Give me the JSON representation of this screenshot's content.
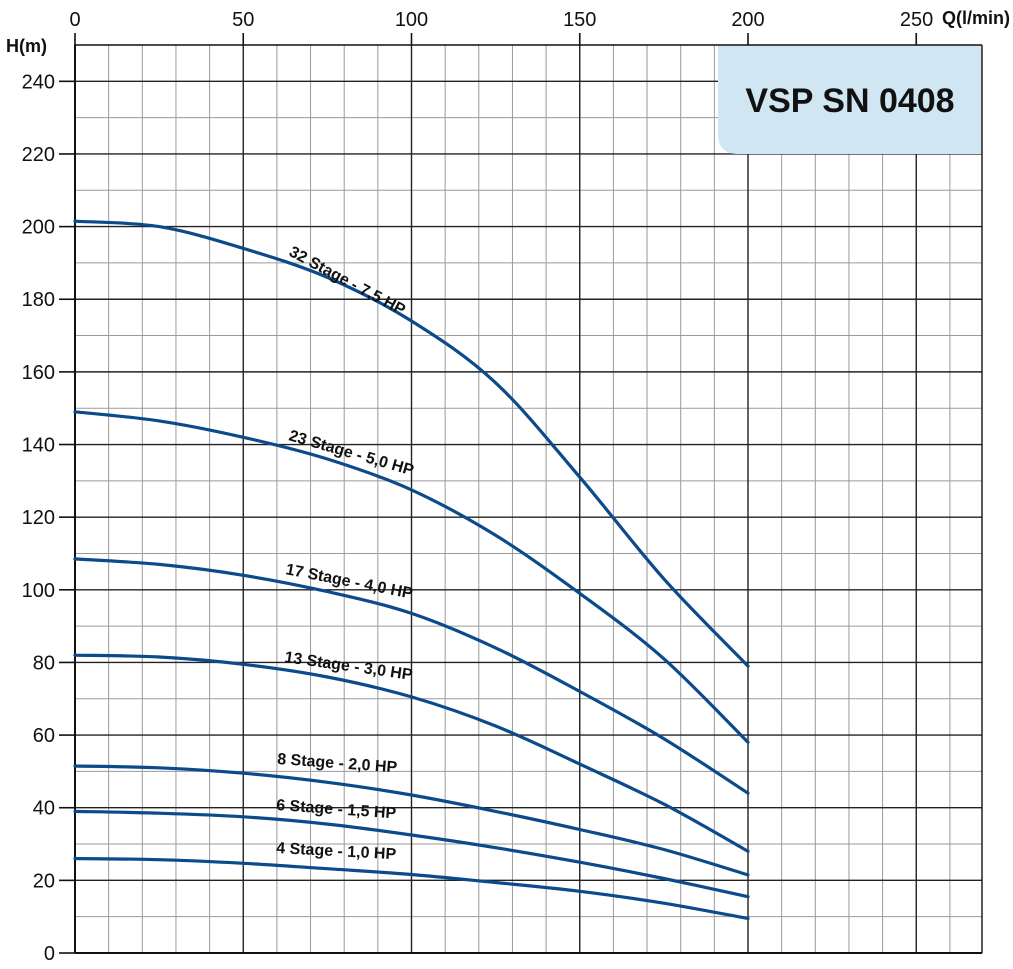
{
  "chart_data": {
    "type": "line",
    "title": "VSP SN 0408",
    "xlabel": "Q(l/min)",
    "ylabel": "H(m)",
    "xlim": [
      0,
      270
    ],
    "ylim": [
      0,
      250
    ],
    "xticks": [
      0,
      50,
      100,
      150,
      200,
      250
    ],
    "yticks": [
      0,
      20,
      40,
      60,
      80,
      100,
      120,
      140,
      160,
      180,
      200,
      220,
      240
    ],
    "grid": true,
    "line_color": "#0b4a8b",
    "title_box_color": "#d0e6f2",
    "series": [
      {
        "name": "32 Stage - 7,5 HP",
        "x": [
          0,
          25,
          50,
          75,
          100,
          125,
          150,
          175,
          200
        ],
        "y": [
          201.5,
          200,
          194,
          186,
          174,
          157,
          131,
          103,
          79
        ]
      },
      {
        "name": "23 Stage - 5,0 HP",
        "x": [
          0,
          25,
          50,
          75,
          100,
          125,
          150,
          175,
          200
        ],
        "y": [
          149,
          146.5,
          142,
          136,
          127.5,
          115,
          99,
          81,
          58
        ]
      },
      {
        "name": "17 Stage - 4,0 HP",
        "x": [
          0,
          25,
          50,
          75,
          100,
          125,
          150,
          175,
          200
        ],
        "y": [
          108.5,
          107,
          104,
          99.5,
          93.5,
          84,
          72,
          59,
          44
        ]
      },
      {
        "name": "13 Stage - 3,0 HP",
        "x": [
          0,
          25,
          50,
          75,
          100,
          125,
          150,
          175,
          200
        ],
        "y": [
          82,
          81.5,
          79.5,
          76,
          70.5,
          62.5,
          52,
          41,
          28
        ]
      },
      {
        "name": "8 Stage - 2,0 HP",
        "x": [
          0,
          25,
          50,
          75,
          100,
          125,
          150,
          175,
          200
        ],
        "y": [
          51.5,
          51,
          49.5,
          47,
          43.5,
          39,
          34,
          28.5,
          21.5
        ]
      },
      {
        "name": "6 Stage - 1,5 HP",
        "x": [
          0,
          25,
          50,
          75,
          100,
          125,
          150,
          175,
          200
        ],
        "y": [
          39,
          38.5,
          37.5,
          35.5,
          32.5,
          29,
          25,
          20.5,
          15.5
        ]
      },
      {
        "name": "4 Stage - 1,0 HP",
        "x": [
          0,
          25,
          50,
          75,
          100,
          125,
          150,
          175,
          200
        ],
        "y": [
          26,
          25.7,
          24.7,
          23.2,
          21.6,
          19.4,
          17,
          13.7,
          9.5
        ]
      }
    ]
  }
}
